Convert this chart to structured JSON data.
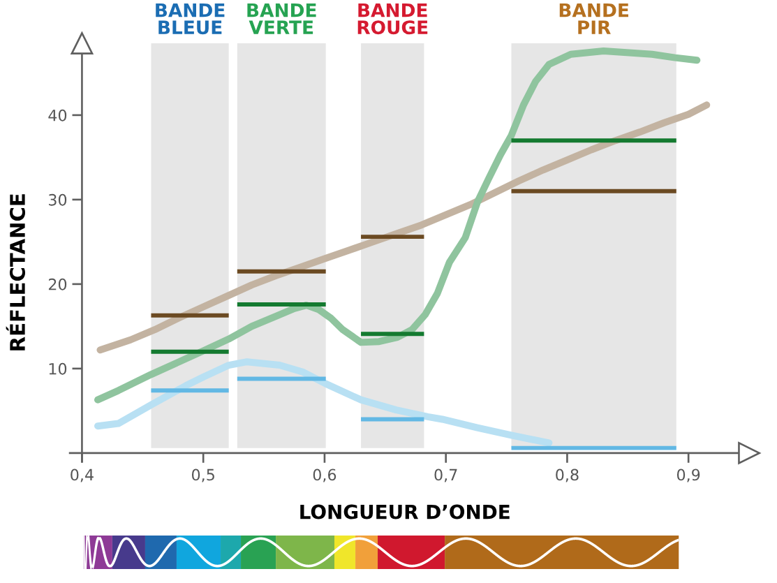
{
  "chart_data": {
    "type": "line",
    "xlabel": "LONGUEUR D’ONDE",
    "ylabel": "RÉFLECTANCE",
    "xlim": [
      0.39,
      0.95
    ],
    "ylim": [
      -1,
      48.5
    ],
    "xticks": [
      {
        "value": 0.4,
        "label": "0,4"
      },
      {
        "value": 0.5,
        "label": "0,5"
      },
      {
        "value": 0.6,
        "label": "0,6"
      },
      {
        "value": 0.7,
        "label": "0,7"
      },
      {
        "value": 0.8,
        "label": "0,8"
      },
      {
        "value": 0.9,
        "label": "0,9"
      }
    ],
    "yticks": [
      10,
      20,
      30,
      40
    ],
    "bands": [
      {
        "axis": "x",
        "from": 0.457,
        "to": 0.521,
        "label": "BANDE\nBLEUE",
        "color": "#e6e6e6"
      },
      {
        "axis": "x",
        "from": 0.528,
        "to": 0.601,
        "label": "BANDE\nVERTE",
        "color": "#e6e6e6"
      },
      {
        "axis": "x",
        "from": 0.63,
        "to": 0.682,
        "label": "BANDE\nROUGE",
        "color": "#e6e6e6"
      },
      {
        "axis": "x",
        "from": 0.754,
        "to": 0.89,
        "label": "BANDE\nPIR",
        "color": "#e6e6e6"
      }
    ],
    "series": [
      {
        "color": "#c3b3a1",
        "x": [
          0.415,
          0.44,
          0.46,
          0.48,
          0.5,
          0.52,
          0.54,
          0.56,
          0.58,
          0.6,
          0.62,
          0.64,
          0.66,
          0.68,
          0.7,
          0.72,
          0.74,
          0.76,
          0.78,
          0.8,
          0.82,
          0.84,
          0.86,
          0.88,
          0.9,
          0.915
        ],
        "values": [
          12.2,
          13.4,
          14.6,
          16.0,
          17.3,
          18.6,
          19.9,
          21.0,
          22.0,
          23.0,
          24.0,
          25.0,
          26.0,
          27.0,
          28.2,
          29.4,
          30.8,
          32.2,
          33.5,
          34.7,
          35.9,
          37.0,
          38.0,
          39.1,
          40.1,
          41.2
        ]
      },
      {
        "color": "#8fc49e",
        "x": [
          0.413,
          0.43,
          0.457,
          0.48,
          0.5,
          0.521,
          0.54,
          0.56,
          0.575,
          0.585,
          0.595,
          0.605,
          0.615,
          0.63,
          0.645,
          0.66,
          0.672,
          0.683,
          0.693,
          0.703,
          0.716,
          0.726,
          0.735,
          0.745,
          0.754,
          0.764,
          0.774,
          0.785,
          0.803,
          0.83,
          0.87,
          0.889,
          0.907
        ],
        "values": [
          6.3,
          7.4,
          9.3,
          10.8,
          12.1,
          13.5,
          15.0,
          16.2,
          17.1,
          17.5,
          17.0,
          16.0,
          14.6,
          13.1,
          13.2,
          13.7,
          14.6,
          16.4,
          18.9,
          22.6,
          25.5,
          29.7,
          32.4,
          35.3,
          37.6,
          41.2,
          44.0,
          46.0,
          47.2,
          47.6,
          47.2,
          46.8,
          46.5
        ]
      },
      {
        "color": "#b8e0f3",
        "x": [
          0.413,
          0.43,
          0.457,
          0.486,
          0.5,
          0.521,
          0.536,
          0.563,
          0.582,
          0.601,
          0.63,
          0.659,
          0.685,
          0.697,
          0.726,
          0.754,
          0.785
        ],
        "values": [
          3.2,
          3.5,
          5.7,
          8.0,
          9.0,
          10.4,
          10.8,
          10.4,
          9.6,
          8.2,
          6.3,
          5.1,
          4.3,
          4.0,
          3.0,
          2.1,
          1.2
        ]
      },
      {
        "type": "step",
        "color": "#6b4a22",
        "x": [
          0.457,
          0.521,
          0.528,
          0.601,
          0.63,
          0.682,
          0.754,
          0.89
        ],
        "values": [
          16.3,
          null,
          21.5,
          null,
          25.6,
          null,
          31.0,
          31.0
        ]
      },
      {
        "type": "step",
        "color": "#147a30",
        "x": [
          0.457,
          0.521,
          0.528,
          0.601,
          0.63,
          0.682,
          0.754,
          0.89
        ],
        "values": [
          12.0,
          null,
          17.6,
          null,
          14.1,
          null,
          37.0,
          37.0
        ]
      },
      {
        "type": "step",
        "color": "#62b8e4",
        "x": [
          0.457,
          0.521,
          0.528,
          0.601,
          0.63,
          0.682,
          0.754,
          0.89
        ],
        "values": [
          7.4,
          null,
          8.8,
          null,
          4.0,
          null,
          0.6,
          0.6
        ]
      }
    ]
  }
}
